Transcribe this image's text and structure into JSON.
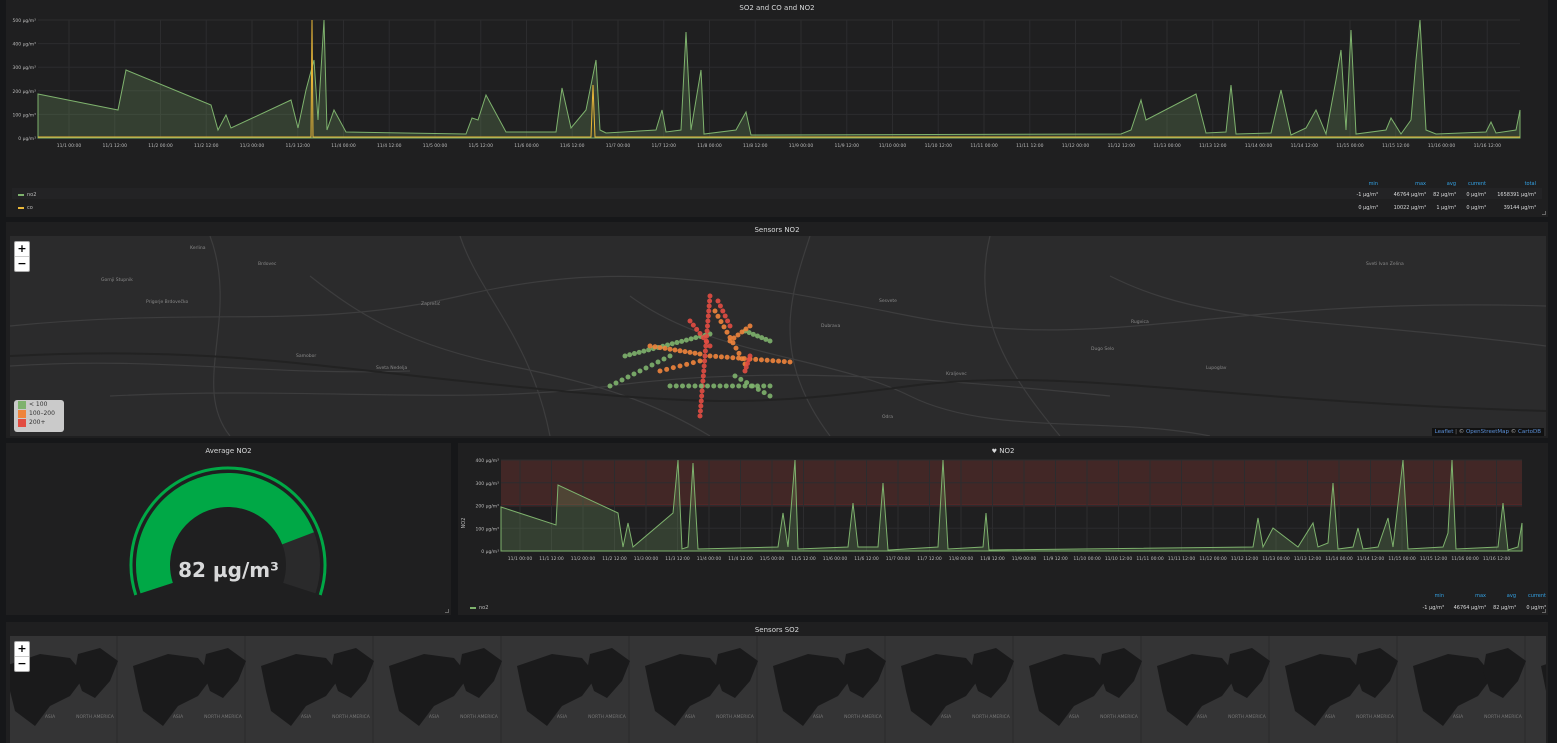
{
  "colors": {
    "green": "#7eb26d",
    "yellow": "#eab839",
    "red": "#e24d42",
    "orange": "#ef843c",
    "accent": "#33a2e5",
    "gauge": "#00a846"
  },
  "panel1": {
    "title": "SO2 and CO and NO2",
    "y_ticks": [
      "500 µg/m³",
      "400 µg/m³",
      "300 µg/m³",
      "200 µg/m³",
      "100 µg/m³",
      "0 µg/m³"
    ],
    "x_ticks": [
      "11/1 00:00",
      "11/1 12:00",
      "11/2 00:00",
      "11/2 12:00",
      "11/3 00:00",
      "11/3 12:00",
      "11/4 00:00",
      "11/4 12:00",
      "11/5 00:00",
      "11/5 12:00",
      "11/6 00:00",
      "11/6 12:00",
      "11/7 00:00",
      "11/7 12:00",
      "11/8 00:00",
      "11/8 12:00",
      "11/9 00:00",
      "11/9 12:00",
      "11/10 00:00",
      "11/10 12:00",
      "11/11 00:00",
      "11/11 12:00",
      "11/12 00:00",
      "11/12 12:00",
      "11/13 00:00",
      "11/13 12:00",
      "11/14 00:00",
      "11/14 12:00",
      "11/15 00:00",
      "11/15 12:00",
      "11/16 00:00",
      "11/16 12:00"
    ],
    "legend_headers": [
      "min",
      "max",
      "avg",
      "current",
      "total"
    ],
    "legend": [
      {
        "name": "no2",
        "min": "-1 µg/m³",
        "max": "46764 µg/m³",
        "avg": "82 µg/m³",
        "current": "0 µg/m³",
        "total": "1658391 µg/m³"
      },
      {
        "name": "co",
        "min": "0 µg/m³",
        "max": "10022 µg/m³",
        "avg": "1 µg/m³",
        "current": "0 µg/m³",
        "total": "39144 µg/m³"
      }
    ]
  },
  "map1": {
    "title": "Sensors NO2",
    "zoom_in": "+",
    "zoom_out": "−",
    "legend": [
      "< 100",
      "100–200",
      "200+"
    ],
    "attribution": {
      "leaflet": "Leaflet",
      "sep": "|",
      "copy": "© ",
      "osm": "OpenStreetMap",
      "copy2": " © ",
      "carto": "CartoDB"
    },
    "places": [
      "Kerlina",
      "Brdovec",
      "Gornji Stupnik",
      "Dugo Selo",
      "Sesvete",
      "Samobor",
      "Sveta Nedelja",
      "Zaprešić",
      "Lupoglav",
      "Rugvica",
      "Prigorje Brdovečko",
      "Odra",
      "Dubrava",
      "Kraljevec",
      "Sveti Ivan Zelina"
    ]
  },
  "gauge": {
    "title": "Average NO2",
    "value": "82 µg/m³",
    "fraction": 0.82
  },
  "panel2": {
    "title": "NO2",
    "ylabel": "NO2",
    "y_ticks": [
      "400 µg/m³",
      "300 µg/m³",
      "200 µg/m³",
      "100 µg/m³",
      "0 µg/m³"
    ],
    "x_ticks": [
      "11/1 00:00",
      "11/1 12:00",
      "11/2 00:00",
      "11/2 12:00",
      "11/3 00:00",
      "11/3 12:00",
      "11/4 00:00",
      "11/4 12:00",
      "11/5 00:00",
      "11/5 12:00",
      "11/6 00:00",
      "11/6 12:00",
      "11/7 00:00",
      "11/7 12:00",
      "11/8 00:00",
      "11/8 12:00",
      "11/9 00:00",
      "11/9 12:00",
      "11/10 00:00",
      "11/10 12:00",
      "11/11 00:00",
      "11/11 12:00",
      "11/12 00:00",
      "11/12 12:00",
      "11/13 00:00",
      "11/13 12:00",
      "11/14 00:00",
      "11/14 12:00",
      "11/15 00:00",
      "11/15 12:00",
      "11/16 00:00",
      "11/16 12:00"
    ],
    "threshold": 200,
    "legend_headers": [
      "min",
      "max",
      "avg",
      "current"
    ],
    "legend": [
      {
        "name": "no2",
        "min": "-1 µg/m³",
        "max": "46764 µg/m³",
        "avg": "82 µg/m³",
        "current": "0 µg/m³"
      }
    ]
  },
  "map2": {
    "title": "Sensors SO2",
    "zoom_in": "+",
    "zoom_out": "−",
    "continent_labels": [
      "ASIA",
      "NORTH AMERICA"
    ]
  }
}
